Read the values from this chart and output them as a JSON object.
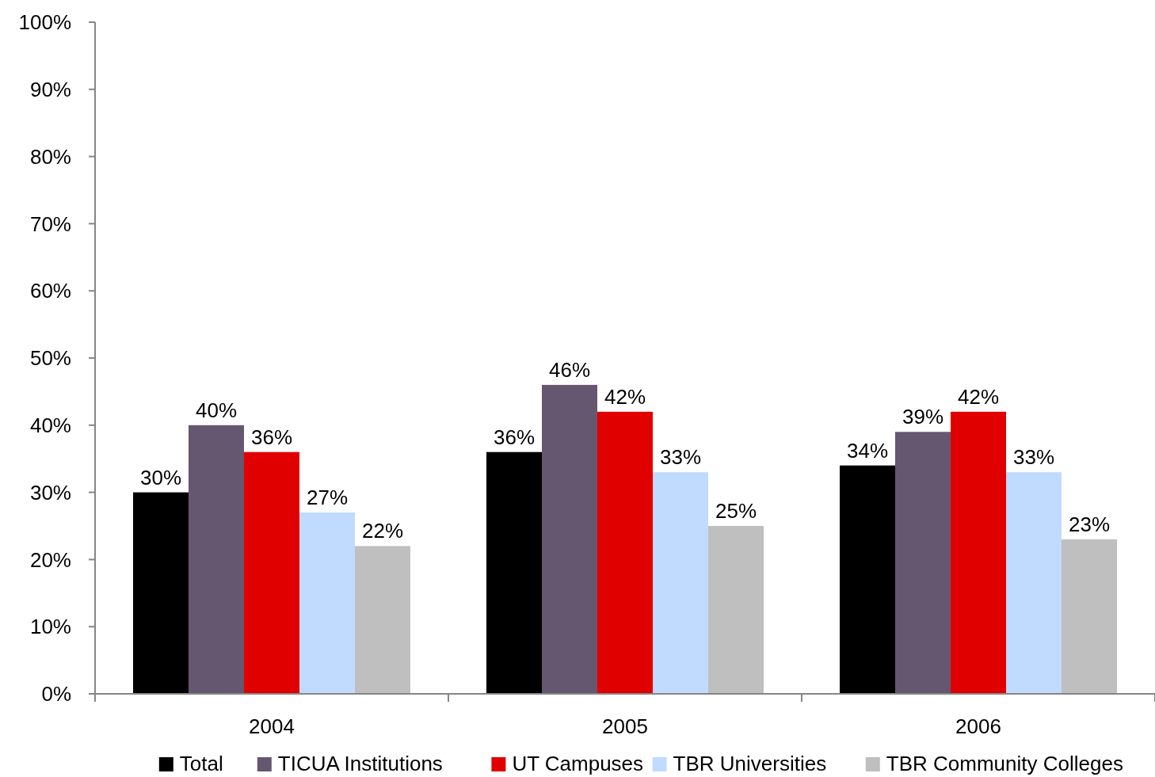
{
  "chart_data": {
    "type": "bar",
    "categories": [
      "2004",
      "2005",
      "2006"
    ],
    "series": [
      {
        "name": "Total",
        "color": "#000000",
        "values": [
          30,
          36,
          34
        ],
        "value_labels": [
          "30%",
          "36%",
          "34%"
        ]
      },
      {
        "name": "TICUA Institutions",
        "color": "#665770",
        "values": [
          40,
          46,
          39
        ],
        "value_labels": [
          "40%",
          "46%",
          "39%"
        ]
      },
      {
        "name": "UT Campuses",
        "color": "#e10000",
        "values": [
          36,
          42,
          42
        ],
        "value_labels": [
          "36%",
          "42%",
          "42%"
        ]
      },
      {
        "name": "TBR Universities",
        "color": "#c0dbff",
        "values": [
          27,
          33,
          33
        ],
        "value_labels": [
          "27%",
          "33%",
          "33%"
        ]
      },
      {
        "name": "TBR Community Colleges",
        "color": "#bfbfbf",
        "values": [
          22,
          25,
          23
        ],
        "value_labels": [
          "22%",
          "25%",
          "23%"
        ]
      }
    ],
    "ylim": [
      0,
      100
    ],
    "yticks": [
      {
        "value": 0,
        "label": "0%"
      },
      {
        "value": 10,
        "label": "10%"
      },
      {
        "value": 20,
        "label": "20%"
      },
      {
        "value": 30,
        "label": "30%"
      },
      {
        "value": 40,
        "label": "40%"
      },
      {
        "value": 50,
        "label": "50%"
      },
      {
        "value": 60,
        "label": "60%"
      },
      {
        "value": 70,
        "label": "70%"
      },
      {
        "value": 80,
        "label": "80%"
      },
      {
        "value": 90,
        "label": "90%"
      },
      {
        "value": 100,
        "label": "100%"
      }
    ],
    "grid": false,
    "legend": "bottom"
  }
}
